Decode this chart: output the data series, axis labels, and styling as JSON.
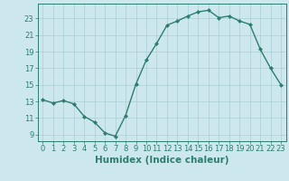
{
  "x": [
    0,
    1,
    2,
    3,
    4,
    5,
    6,
    7,
    8,
    9,
    10,
    11,
    12,
    13,
    14,
    15,
    16,
    17,
    18,
    19,
    20,
    21,
    22,
    23
  ],
  "y": [
    13.2,
    12.8,
    13.1,
    12.7,
    11.2,
    10.5,
    9.2,
    8.8,
    11.3,
    15.1,
    18.0,
    20.0,
    22.2,
    22.7,
    23.3,
    23.8,
    24.0,
    23.1,
    23.3,
    22.7,
    22.3,
    19.3,
    17.0,
    15.0
  ],
  "line_color": "#2e7d6e",
  "marker": "D",
  "marker_size": 2.0,
  "bg_color": "#cce8ee",
  "grid_color": "#aacdd5",
  "xlabel": "Humidex (Indice chaleur)",
  "yticks": [
    9,
    11,
    13,
    15,
    17,
    19,
    21,
    23
  ],
  "xticks": [
    0,
    1,
    2,
    3,
    4,
    5,
    6,
    7,
    8,
    9,
    10,
    11,
    12,
    13,
    14,
    15,
    16,
    17,
    18,
    19,
    20,
    21,
    22,
    23
  ],
  "ylim": [
    8.2,
    24.8
  ],
  "xlim": [
    -0.5,
    23.5
  ],
  "font_color": "#2e7d6e",
  "tick_labelsize": 6,
  "xlabel_fontsize": 7.5,
  "linewidth": 1.0
}
